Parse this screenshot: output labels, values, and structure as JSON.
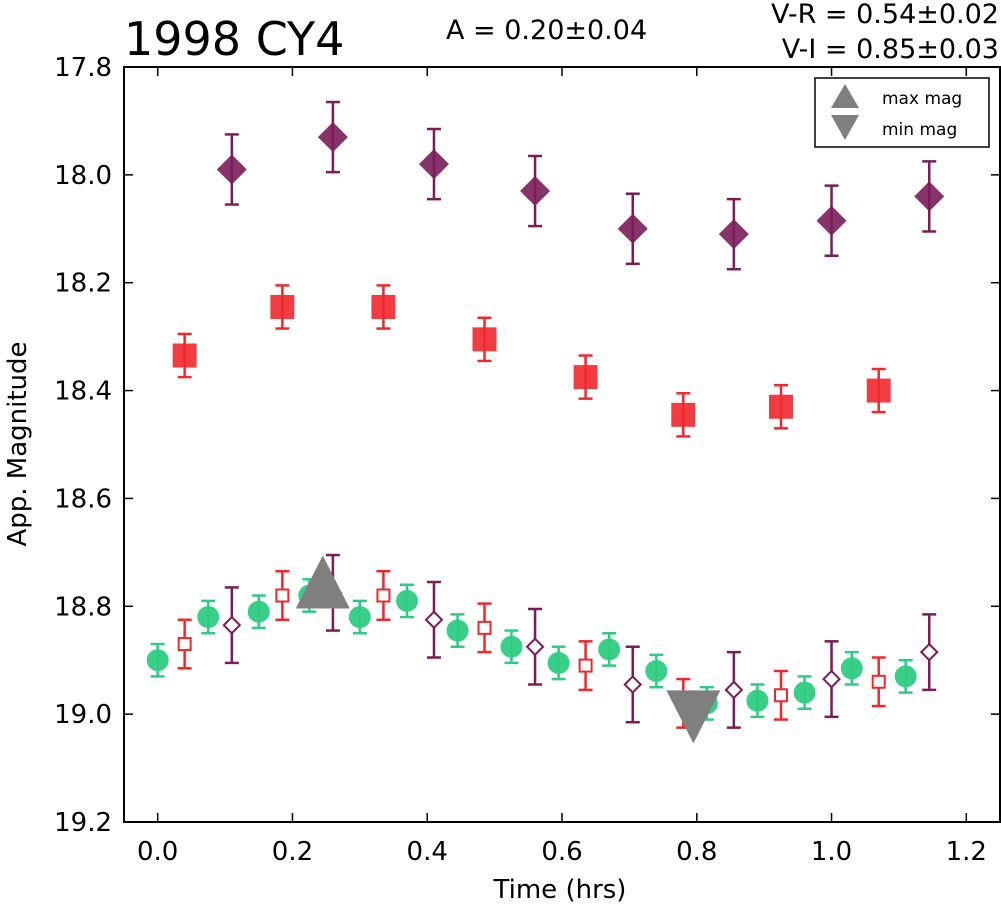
{
  "header": {
    "object_name": "1998 CY4",
    "amplitude": "A  = 0.20±0.04",
    "color_vr": "V-R = 0.54±0.02",
    "color_vi": "V-I  = 0.85±0.03"
  },
  "chart_data": {
    "type": "scatter",
    "xlabel": "Time (hrs)",
    "ylabel": "App. Magnitude",
    "xlim": [
      -0.05,
      1.25
    ],
    "ylim": [
      19.2,
      17.8
    ],
    "y_inverted": true,
    "xticks": [
      "0.0",
      "0.2",
      "0.4",
      "0.6",
      "0.8",
      "1.0",
      "1.2"
    ],
    "yticks": [
      "17.8",
      "18.0",
      "18.2",
      "18.4",
      "18.6",
      "18.8",
      "19.0",
      "19.2"
    ],
    "grid": false,
    "legend": {
      "position": "top-right",
      "entries": [
        {
          "label": "max mag",
          "marker": "triangle-up",
          "color": "#7f7f7f"
        },
        {
          "label": "min mag",
          "marker": "triangle-down",
          "color": "#7f7f7f"
        }
      ]
    },
    "colors": {
      "purple": "#7b1c5a",
      "red": "#f0282d",
      "green": "#2ecc82",
      "gray": "#7f7f7f"
    },
    "series": [
      {
        "marker": "diamond",
        "color": "#7b1c5a",
        "filled": true,
        "x": [
          0.11,
          0.26,
          0.41,
          0.56,
          0.705,
          0.855,
          1.0,
          1.145
        ],
        "y": [
          17.99,
          17.93,
          17.98,
          18.03,
          18.1,
          18.11,
          18.085,
          18.04
        ],
        "err": [
          0.065,
          0.065,
          0.065,
          0.065,
          0.065,
          0.065,
          0.065,
          0.065
        ]
      },
      {
        "marker": "square",
        "color": "#f0282d",
        "filled": true,
        "x": [
          0.04,
          0.185,
          0.335,
          0.485,
          0.635,
          0.78,
          0.925,
          1.07
        ],
        "y": [
          18.335,
          18.245,
          18.245,
          18.305,
          18.375,
          18.445,
          18.43,
          18.4
        ],
        "err": [
          0.04,
          0.04,
          0.04,
          0.04,
          0.04,
          0.04,
          0.04,
          0.04
        ]
      },
      {
        "marker": "circle",
        "color": "#2ecc82",
        "filled": true,
        "x": [
          0.0,
          0.075,
          0.15,
          0.225,
          0.3,
          0.37,
          0.445,
          0.525,
          0.595,
          0.67,
          0.74,
          0.815,
          0.89,
          0.96,
          1.03,
          1.11
        ],
        "y": [
          18.9,
          18.82,
          18.81,
          18.78,
          18.82,
          18.79,
          18.845,
          18.875,
          18.905,
          18.88,
          18.92,
          18.98,
          18.975,
          18.96,
          18.915,
          18.93
        ],
        "err": [
          0.03,
          0.03,
          0.03,
          0.03,
          0.03,
          0.03,
          0.03,
          0.03,
          0.03,
          0.03,
          0.03,
          0.03,
          0.03,
          0.03,
          0.03,
          0.03
        ]
      },
      {
        "marker": "square",
        "color": "#f0282d",
        "filled": false,
        "x": [
          0.04,
          0.185,
          0.335,
          0.485,
          0.635,
          0.78,
          0.925,
          1.07
        ],
        "y": [
          18.87,
          18.78,
          18.78,
          18.84,
          18.91,
          18.98,
          18.965,
          18.94
        ],
        "err": [
          0.045,
          0.045,
          0.045,
          0.045,
          0.045,
          0.045,
          0.045,
          0.045
        ]
      },
      {
        "marker": "diamond",
        "color": "#7b1c5a",
        "filled": false,
        "x": [
          0.11,
          0.26,
          0.41,
          0.56,
          0.705,
          0.855,
          1.0,
          1.145
        ],
        "y": [
          18.835,
          18.775,
          18.825,
          18.875,
          18.945,
          18.955,
          18.935,
          18.885
        ],
        "err": [
          0.07,
          0.07,
          0.07,
          0.07,
          0.07,
          0.07,
          0.07,
          0.07
        ]
      },
      {
        "marker": "triangle-up",
        "color": "#7f7f7f",
        "filled": true,
        "name": "max mag",
        "x": [
          0.245
        ],
        "y": [
          18.78
        ],
        "err": [
          0
        ]
      },
      {
        "marker": "triangle-down",
        "color": "#7f7f7f",
        "filled": true,
        "name": "min mag",
        "x": [
          0.795
        ],
        "y": [
          18.98
        ],
        "err": [
          0
        ]
      }
    ]
  }
}
